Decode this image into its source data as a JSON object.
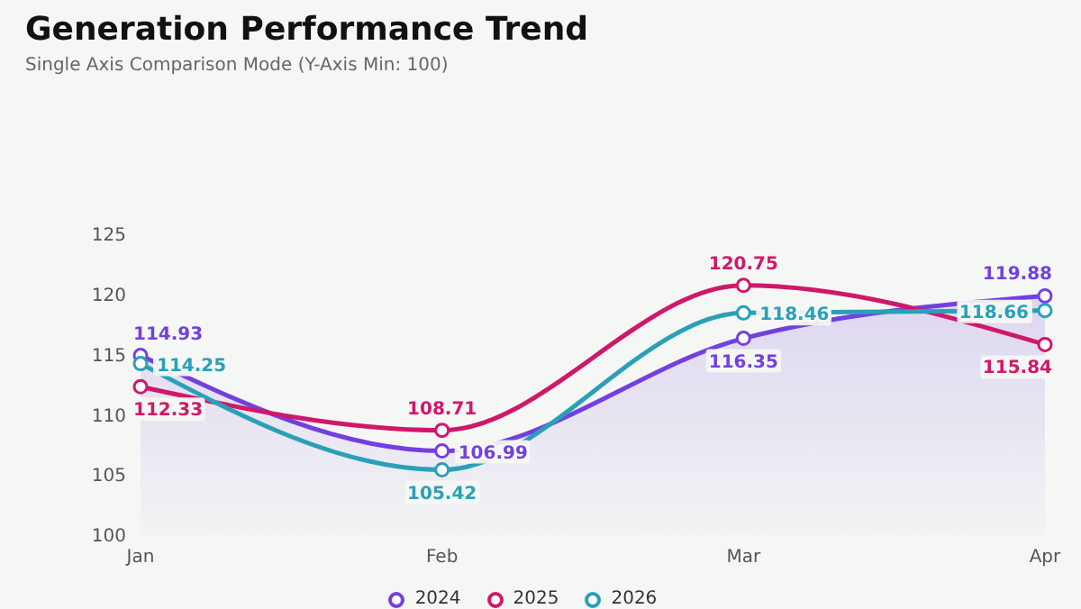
{
  "chart_data": {
    "type": "line",
    "title": "Generation Performance Trend",
    "subtitle": "Single Axis Comparison Mode (Y-Axis Min: 100)",
    "categories": [
      "Jan",
      "Feb",
      "Mar",
      "Apr"
    ],
    "series": [
      {
        "name": "2024",
        "type": "area",
        "color": "#7340e0",
        "values": [
          114.93,
          106.99,
          116.35,
          119.88
        ]
      },
      {
        "name": "2025",
        "type": "line",
        "color": "#d0186a",
        "values": [
          112.33,
          108.71,
          120.75,
          115.84
        ]
      },
      {
        "name": "2026",
        "type": "line",
        "color": "#2aa0b8",
        "values": [
          114.25,
          105.42,
          118.46,
          118.66
        ]
      }
    ],
    "ylim": [
      100,
      125
    ],
    "yticks": [
      100,
      105,
      110,
      115,
      120,
      125
    ],
    "grid": false,
    "legend": "bottom",
    "marker": "circle",
    "data_labels": true
  }
}
